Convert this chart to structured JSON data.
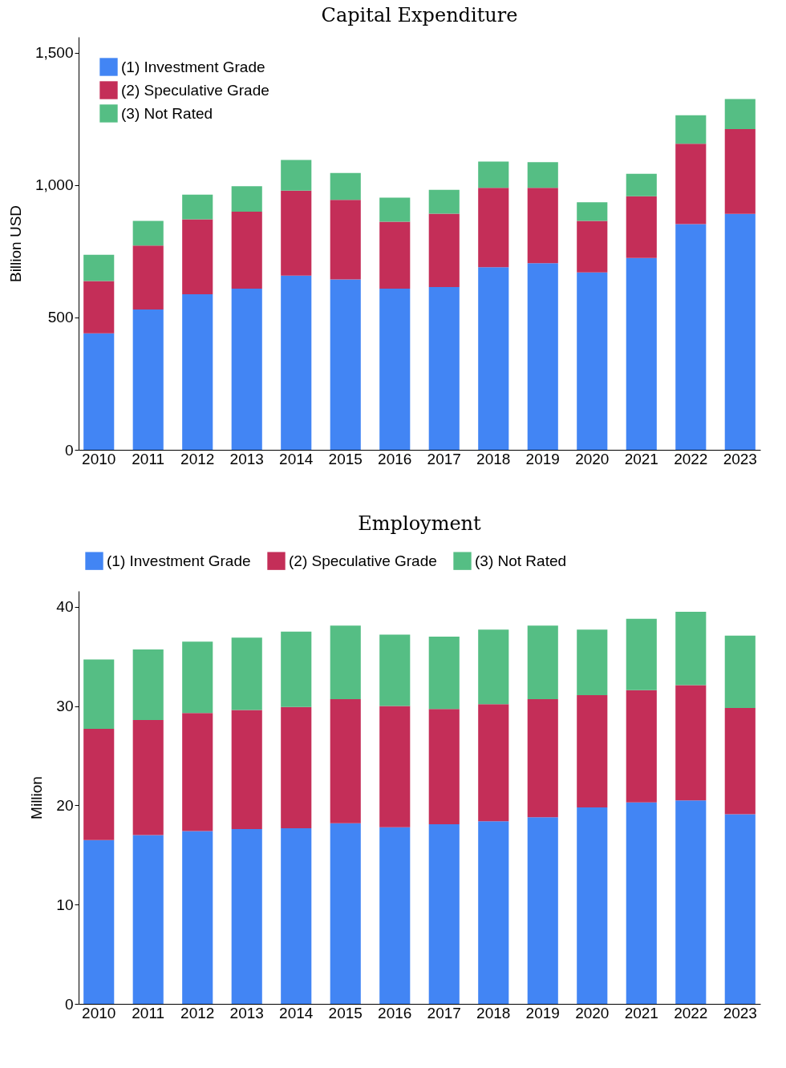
{
  "chart_data": [
    {
      "type": "bar",
      "title": "Capital Expenditure",
      "ylabel": "Billion USD",
      "stacked": true,
      "legend": "top left",
      "grid": false,
      "categories": [
        "2010",
        "2011",
        "2012",
        "2013",
        "2014",
        "2015",
        "2016",
        "2017",
        "2018",
        "2019",
        "2020",
        "2021",
        "2022",
        "2023"
      ],
      "ylim": [
        0,
        1560
      ],
      "yticks": [
        0,
        500,
        {
          "value": 1000,
          "label": "1,000"
        },
        {
          "value": 1500,
          "label": "1,500"
        }
      ],
      "series": [
        {
          "name": "(1) Investment Grade",
          "color": "#4285f4",
          "values": [
            440,
            530,
            588,
            609,
            658,
            644,
            609,
            615,
            690,
            705,
            670,
            725,
            853,
            891
          ]
        },
        {
          "name": "(2) Speculative Grade",
          "color": "#c42e58",
          "values": [
            198,
            242,
            283,
            291,
            321,
            300,
            253,
            277,
            300,
            285,
            195,
            233,
            303,
            321
          ]
        },
        {
          "name": "(3) Not Rated",
          "color": "#55be84",
          "values": [
            99,
            93,
            93,
            96,
            116,
            102,
            91,
            90,
            99,
            97,
            70,
            85,
            108,
            113
          ]
        }
      ]
    },
    {
      "type": "bar",
      "title": "Employment",
      "ylabel": "Million",
      "stacked": true,
      "legend": "top",
      "grid": false,
      "categories": [
        "2010",
        "2011",
        "2012",
        "2013",
        "2014",
        "2015",
        "2016",
        "2017",
        "2018",
        "2019",
        "2020",
        "2021",
        "2022",
        "2023"
      ],
      "ylim": [
        0,
        41.6
      ],
      "yticks": [
        0,
        10,
        20,
        30,
        40
      ],
      "series": [
        {
          "name": "(1) Investment Grade",
          "color": "#4285f4",
          "values": [
            16.5,
            17.0,
            17.4,
            17.6,
            17.7,
            18.2,
            17.8,
            18.1,
            18.4,
            18.8,
            19.8,
            20.3,
            20.5,
            19.1
          ]
        },
        {
          "name": "(2) Speculative Grade",
          "color": "#c42e58",
          "values": [
            11.2,
            11.6,
            11.9,
            12.0,
            12.2,
            12.5,
            12.2,
            11.6,
            11.8,
            11.9,
            11.3,
            11.3,
            11.6,
            10.7
          ]
        },
        {
          "name": "(3) Not Rated",
          "color": "#55be84",
          "values": [
            7.0,
            7.1,
            7.2,
            7.3,
            7.6,
            7.4,
            7.2,
            7.3,
            7.5,
            7.4,
            6.6,
            7.2,
            7.4,
            7.3
          ]
        }
      ]
    }
  ]
}
